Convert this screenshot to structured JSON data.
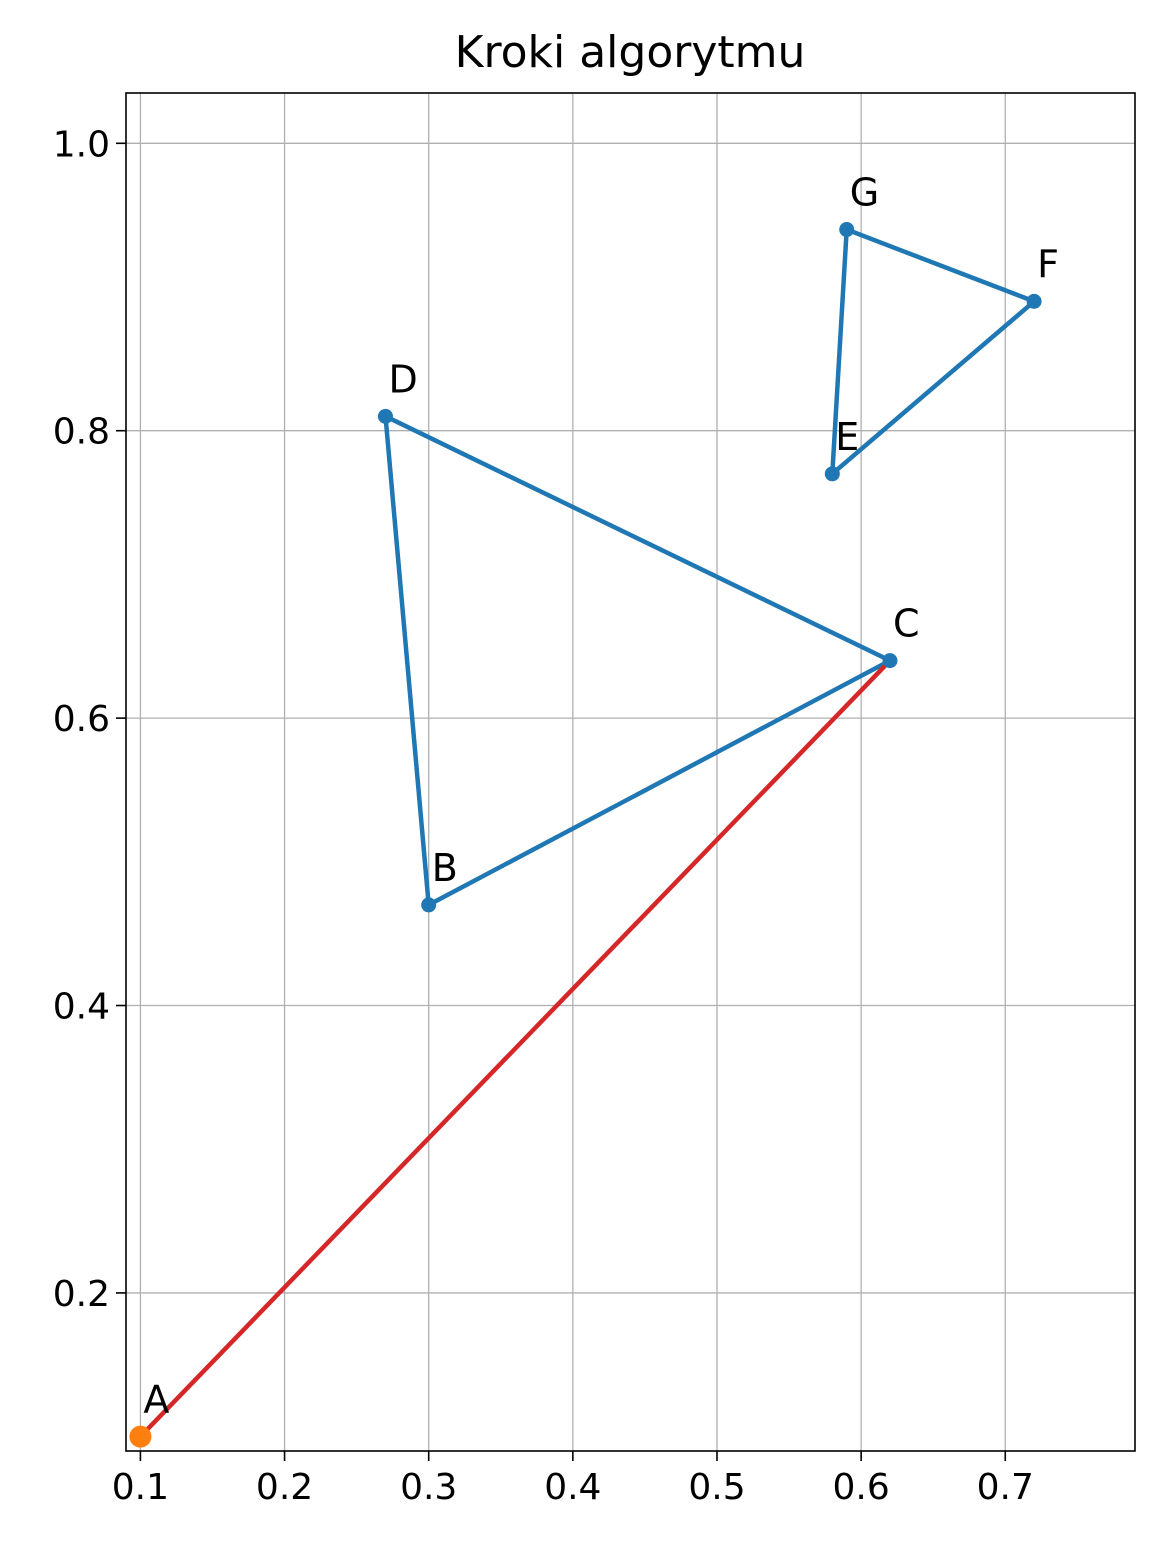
{
  "chart_data": {
    "type": "line",
    "title": "Kroki algorytmu",
    "xlabel": "",
    "ylabel": "",
    "xlim": [
      0.09,
      0.79
    ],
    "ylim": [
      0.09,
      1.035
    ],
    "x_ticks": [
      0.1,
      0.2,
      0.3,
      0.4,
      0.5,
      0.6,
      0.7
    ],
    "x_tick_labels": [
      "0.1",
      "0.2",
      "0.3",
      "0.4",
      "0.5",
      "0.6",
      "0.7"
    ],
    "y_ticks": [
      0.2,
      0.4,
      0.6,
      0.8,
      1.0
    ],
    "y_tick_labels": [
      "0.2",
      "0.4",
      "0.6",
      "0.8",
      "1.0"
    ],
    "grid": true,
    "points": [
      {
        "label": "A",
        "x": 0.1,
        "y": 0.1
      },
      {
        "label": "B",
        "x": 0.3,
        "y": 0.47
      },
      {
        "label": "C",
        "x": 0.62,
        "y": 0.64
      },
      {
        "label": "D",
        "x": 0.27,
        "y": 0.81
      },
      {
        "label": "E",
        "x": 0.58,
        "y": 0.77
      },
      {
        "label": "F",
        "x": 0.72,
        "y": 0.89
      },
      {
        "label": "G",
        "x": 0.59,
        "y": 0.94
      }
    ],
    "series": [
      {
        "color": "#1f77b4",
        "path": [
          "B",
          "C",
          "D",
          "B"
        ]
      },
      {
        "color": "#1f77b4",
        "path": [
          "E",
          "F",
          "G",
          "E"
        ]
      },
      {
        "color": "#d62728",
        "path": [
          "A",
          "C"
        ]
      }
    ],
    "highlight": {
      "label": "A",
      "color": "#ff7f0e"
    }
  }
}
